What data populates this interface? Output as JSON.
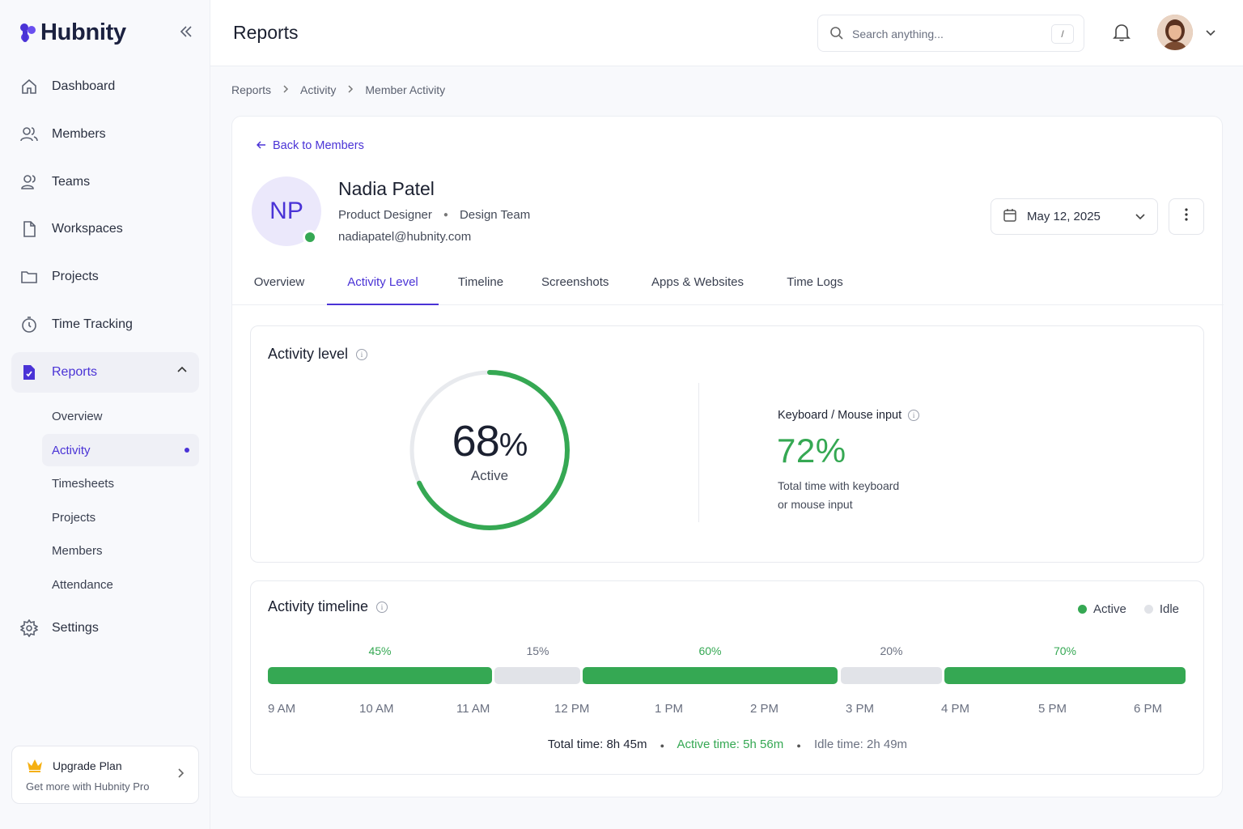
{
  "brand": {
    "name": "Hubnity",
    "accent": "#4a33d6"
  },
  "sidebar": {
    "items": [
      {
        "label": "Dashboard",
        "icon": "home-icon"
      },
      {
        "label": "Members",
        "icon": "users-icon"
      },
      {
        "label": "Teams",
        "icon": "team-icon"
      },
      {
        "label": "Workspaces",
        "icon": "file-icon"
      },
      {
        "label": "Projects",
        "icon": "folder-icon"
      },
      {
        "label": "Time Tracking",
        "icon": "stopwatch-icon"
      },
      {
        "label": "Reports",
        "icon": "report-icon",
        "active": true
      }
    ],
    "reports_sub": [
      "Overview",
      "Activity",
      "Timesheets",
      "Projects",
      "Members",
      "Attendance"
    ],
    "reports_sub_active": "Activity",
    "settings_label": "Settings",
    "upgrade": {
      "title": "Upgrade Plan",
      "subtitle": "Get more with Hubnity Pro"
    }
  },
  "header": {
    "title": "Reports",
    "search_placeholder": "Search anything...",
    "search_shortcut": "/"
  },
  "breadcrumb": [
    "Reports",
    "Activity",
    "Member Activity"
  ],
  "member": {
    "back_label": "Back to Members",
    "initials": "NP",
    "name": "Nadia Patel",
    "role": "Product Designer",
    "team": "Design Team",
    "email": "nadiapatel@hubnity.com",
    "date": "May 12, 2025",
    "status_color": "#35a853"
  },
  "tabs": [
    "Overview",
    "Activity Level",
    "Timeline",
    "Screenshots",
    "Apps & Websites",
    "Time Logs"
  ],
  "active_tab": "Activity Level",
  "activity_level": {
    "title": "Activity level",
    "percent": 68,
    "percent_text": "68",
    "percent_unit": "%",
    "percent_label": "Active",
    "keyboard_title": "Keyboard / Mouse input",
    "keyboard_value": "72%",
    "keyboard_desc_1": "Total time with keyboard",
    "keyboard_desc_2": "or mouse input"
  },
  "timeline": {
    "title": "Activity timeline",
    "legend": [
      {
        "label": "Active",
        "color": "#35a853"
      },
      {
        "label": "Idle",
        "color": "#e1e3e8"
      }
    ],
    "segments": [
      {
        "label": "45%",
        "state": "active"
      },
      {
        "label": "15%",
        "state": "idle"
      },
      {
        "label": "60%",
        "state": "active"
      },
      {
        "label": "20%",
        "state": "idle"
      },
      {
        "label": "70%",
        "state": "active"
      }
    ],
    "hours": [
      "9 AM",
      "10 AM",
      "11 AM",
      "12 PM",
      "1 PM",
      "2 PM",
      "3 PM",
      "4 PM",
      "5 PM",
      "6 PM"
    ],
    "total_label": "Total time:",
    "total_value": "8h 45m",
    "active_label": "Active time:",
    "active_value": "5h 56m",
    "idle_label": "Idle time:",
    "idle_value": "2h 49m"
  }
}
